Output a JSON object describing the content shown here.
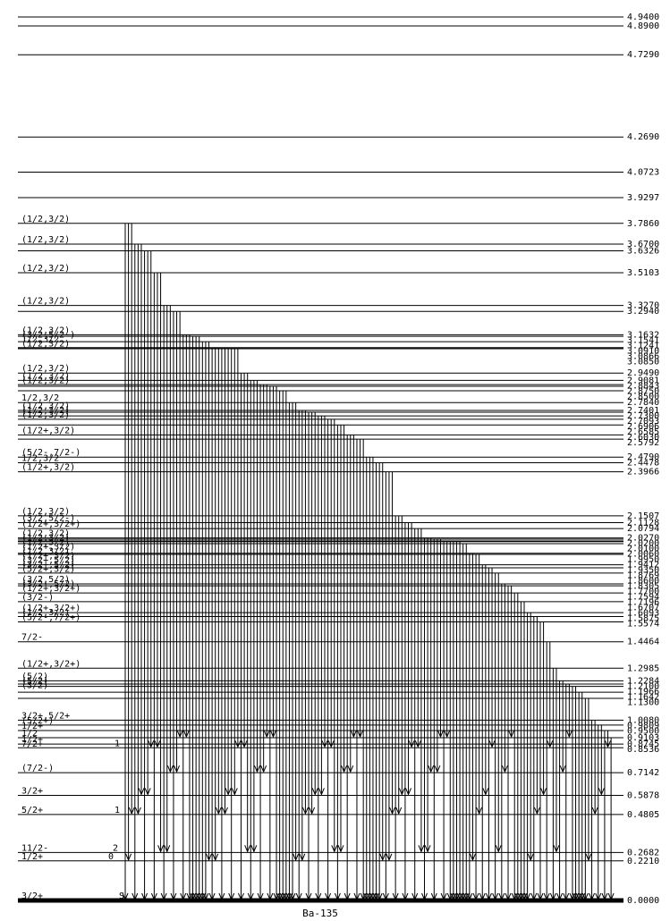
{
  "nucleus": "Ba-135",
  "energy_unit": "MeV",
  "levels": [
    {
      "e": "4.9400",
      "jp": ""
    },
    {
      "e": "4.8900",
      "jp": ""
    },
    {
      "e": "4.7290",
      "jp": ""
    },
    {
      "e": "4.2690",
      "jp": ""
    },
    {
      "e": "4.0723",
      "jp": ""
    },
    {
      "e": "3.9297",
      "jp": ""
    },
    {
      "e": "3.7860",
      "jp": "(1/2,3/2)"
    },
    {
      "e": "3.6700",
      "jp": "(1/2,3/2)"
    },
    {
      "e": "3.6326",
      "jp": ""
    },
    {
      "e": "3.5103",
      "jp": "(1/2,3/2)"
    },
    {
      "e": "3.3270",
      "jp": "(1/2,3/2)"
    },
    {
      "e": "3.2940",
      "jp": ""
    },
    {
      "e": "3.1632",
      "jp": "(1/2,3/2)"
    },
    {
      "e": "3.1541",
      "jp": "(3/2,5/2-)"
    },
    {
      "e": "3.1241",
      "jp": "1/2,3/2"
    },
    {
      "e": "3.0910",
      "jp": "(1/2,3/2)"
    },
    {
      "e": "3.0866",
      "jp": ""
    },
    {
      "e": "3.0850",
      "jp": ""
    },
    {
      "e": "2.9490",
      "jp": "(1/2,3/2)"
    },
    {
      "e": "2.9081",
      "jp": "(1/2,3/2)"
    },
    {
      "e": "2.8843",
      "jp": "(1/2,3/2)"
    },
    {
      "e": "2.8750",
      "jp": ""
    },
    {
      "e": "2.8500",
      "jp": ""
    },
    {
      "e": "2.7840",
      "jp": "1/2,3/2"
    },
    {
      "e": "2.7401",
      "jp": "(1/2,3/2)"
    },
    {
      "e": "2.7300",
      "jp": "(1/2,3/2)"
    },
    {
      "e": "2.7093",
      "jp": "(1/2,3/2)"
    },
    {
      "e": "2.6906",
      "jp": ""
    },
    {
      "e": "2.6585",
      "jp": ""
    },
    {
      "e": "2.6030",
      "jp": "(1/2+,3/2)"
    },
    {
      "e": "2.5792",
      "jp": ""
    },
    {
      "e": "2.4790",
      "jp": "(5/2-,7/2-)"
    },
    {
      "e": "2.4478",
      "jp": "1/2,3/2"
    },
    {
      "e": "2.3966",
      "jp": "(1/2+,3/2)"
    },
    {
      "e": "2.1507",
      "jp": "(1/2,3/2)"
    },
    {
      "e": "2.1128",
      "jp": "(3/2,5/2-)"
    },
    {
      "e": "2.0794",
      "jp": "(1/2+,3/2+)"
    },
    {
      "e": "2.0270",
      "jp": "(1/2,3/2)"
    },
    {
      "e": "2.0200",
      "jp": "(1/2,3/2)"
    },
    {
      "e": "2.0100",
      "jp": "(1/2,3/2)"
    },
    {
      "e": "2.0060",
      "jp": "(1/2+,3/2)"
    },
    {
      "e": "1.9950",
      "jp": "(1/2,3/2)"
    },
    {
      "e": "1.9412",
      "jp": "(1/2+,3/2)"
    },
    {
      "e": "1.9350",
      "jp": "(3/2+,5/2)"
    },
    {
      "e": "1.8769",
      "jp": "(3/2+,5/2)"
    },
    {
      "e": "1.8600",
      "jp": ""
    },
    {
      "e": "1.8305",
      "jp": "(5/2+,3/2)"
    },
    {
      "e": "1.7700",
      "jp": "(3/2,5/2)"
    },
    {
      "e": "1.7594",
      "jp": "(3/2+,5/2)"
    },
    {
      "e": "1.7196",
      "jp": "(1/2+,3/2+)"
    },
    {
      "e": "1.6707",
      "jp": "(3/2-)"
    },
    {
      "e": "1.6093",
      "jp": "(1/2+,3/2+)"
    },
    {
      "e": "1.5875",
      "jp": "(1/2,3/2)"
    },
    {
      "e": "1.5574",
      "jp": "(5/2-,7/2+)"
    },
    {
      "e": "1.4464",
      "jp": "7/2-"
    },
    {
      "e": "1.2985",
      "jp": "(1/2+,3/2+)"
    },
    {
      "e": "1.2284",
      "jp": "(5/2)"
    },
    {
      "e": "1.2100",
      "jp": "(5/2)"
    },
    {
      "e": "1.1966",
      "jp": "(3/2)"
    },
    {
      "e": "1.1642",
      "jp": ""
    },
    {
      "e": "1.1300",
      "jp": ""
    },
    {
      "e": "1.0080",
      "jp": "3/2+,5/2+"
    },
    {
      "e": "0.9809",
      "jp": "(5/2+)"
    },
    {
      "e": "0.9500",
      "jp": "1/2+"
    },
    {
      "e": "0.9103",
      "jp": "1/2"
    },
    {
      "e": "0.8745",
      "jp": "1/2+"
    },
    {
      "e": "0.8536",
      "jp": "7/2+"
    },
    {
      "e": "0.7142",
      "jp": "(7/2-)"
    },
    {
      "e": "0.5878",
      "jp": "3/2+"
    },
    {
      "e": "0.4805",
      "jp": "5/2+"
    },
    {
      "e": "0.2682",
      "jp": "11/2-"
    },
    {
      "e": "0.2210",
      "jp": "1/2+"
    },
    {
      "e": "0.0000",
      "jp": "3/2+"
    }
  ],
  "level_tags": [
    {
      "e": "0.8536",
      "tag": "1"
    },
    {
      "e": "0.4805",
      "tag": "1"
    },
    {
      "e": "0.2682",
      "tag": "2"
    },
    {
      "e": "0.2210",
      "tag": "0"
    },
    {
      "e": "0.0000",
      "tag": "S"
    }
  ]
}
